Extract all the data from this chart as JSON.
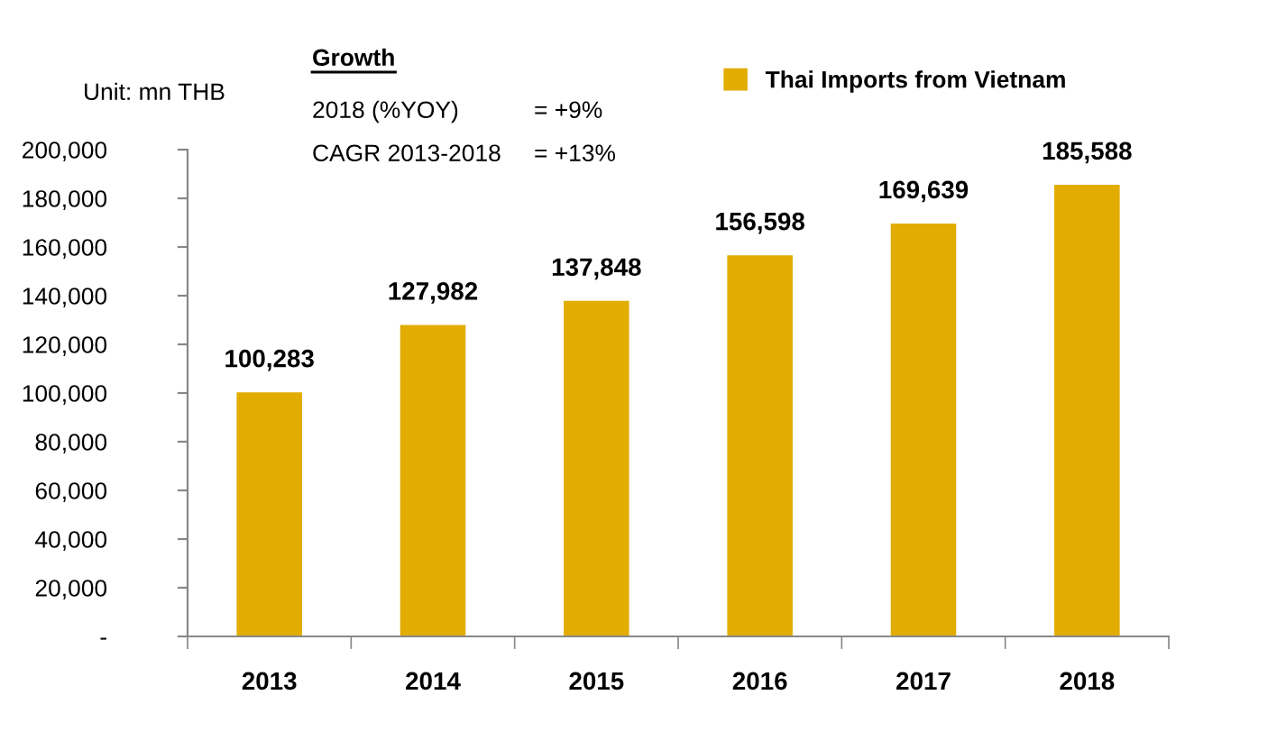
{
  "chart_data": {
    "type": "bar",
    "ylabel": "Unit: mn THB",
    "categories": [
      "2013",
      "2014",
      "2015",
      "2016",
      "2017",
      "2018"
    ],
    "series": [
      {
        "name": "Thai Imports from Vietnam",
        "color": "#e2ac00",
        "values": [
          100283,
          127982,
          137848,
          156598,
          169639,
          185588
        ]
      }
    ],
    "ylim": [
      0,
      200000
    ],
    "yticks": [
      {
        "value": 0,
        "label": "-"
      },
      {
        "value": 20000,
        "label": "20,000"
      },
      {
        "value": 40000,
        "label": "40,000"
      },
      {
        "value": 60000,
        "label": "60,000"
      },
      {
        "value": 80000,
        "label": "80,000"
      },
      {
        "value": 100000,
        "label": "100,000"
      },
      {
        "value": 120000,
        "label": "120,000"
      },
      {
        "value": 140000,
        "label": "140,000"
      },
      {
        "value": 160000,
        "label": "160,000"
      },
      {
        "value": 180000,
        "label": "180,000"
      },
      {
        "value": 200000,
        "label": "200,000"
      }
    ],
    "value_labels": [
      "100,283",
      "127,982",
      "137,848",
      "156,598",
      "169,639",
      "185,588"
    ],
    "annotations": [
      "Growth",
      "2018 (%YOY)",
      "= +9%",
      "CAGR 2013-2018",
      "= +13%"
    ],
    "legend": "top",
    "grid": false
  }
}
